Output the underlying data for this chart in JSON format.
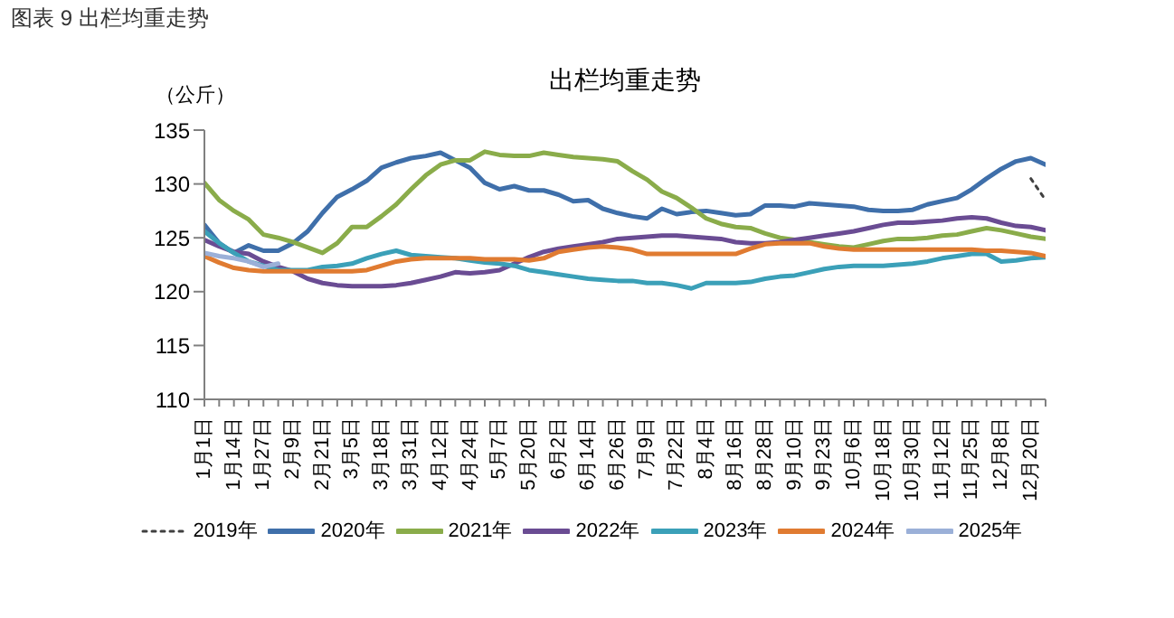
{
  "chart_data": {
    "type": "line",
    "title": "出栏均重走势",
    "ylabel": "（公斤）",
    "annotations": [
      "图表 9 出栏均重走势"
    ],
    "categories": [
      "1月1日",
      null,
      "1月14日",
      null,
      "1月27日",
      null,
      "2月9日",
      null,
      "2月21日",
      null,
      "3月5日",
      null,
      "3月18日",
      null,
      "3月31日",
      null,
      "4月12日",
      null,
      "4月24日",
      null,
      "5月7日",
      null,
      "5月20日",
      null,
      "6月2日",
      null,
      "6月14日",
      null,
      "6月26日",
      null,
      "7月9日",
      null,
      "7月22日",
      null,
      "8月4日",
      null,
      "8月16日",
      null,
      "8月28日",
      null,
      "9月10日",
      null,
      "9月23日",
      null,
      "10月6日",
      null,
      "10月18日",
      null,
      "10月30日",
      null,
      "11月12日",
      null,
      "11月25日",
      null,
      "12月8日",
      null,
      "12月20日",
      null
    ],
    "series": [
      {
        "name": "2019年",
        "color": "#404040",
        "line_style": "dotted",
        "values": [
          null,
          null,
          null,
          null,
          null,
          null,
          null,
          null,
          null,
          null,
          null,
          null,
          null,
          null,
          null,
          null,
          null,
          null,
          null,
          null,
          null,
          null,
          null,
          null,
          null,
          null,
          null,
          null,
          null,
          null,
          null,
          null,
          null,
          null,
          null,
          null,
          null,
          null,
          null,
          null,
          null,
          null,
          null,
          null,
          null,
          null,
          null,
          null,
          null,
          null,
          null,
          null,
          null,
          null,
          null,
          null,
          130.5,
          128.5
        ]
      },
      {
        "name": "2020年",
        "color": "#3f6faa",
        "values": [
          126.2,
          124.5,
          123.6,
          124.3,
          123.8,
          123.8,
          124.5,
          125.6,
          127.3,
          128.8,
          129.5,
          130.3,
          131.5,
          132,
          132.4,
          132.6,
          132.9,
          132.2,
          131.5,
          130.1,
          129.5,
          129.8,
          129.4,
          129.4,
          129,
          128.4,
          128.5,
          127.7,
          127.3,
          127,
          126.8,
          127.7,
          127.2,
          127.4,
          127.5,
          127.3,
          127.1,
          127.2,
          128,
          128,
          127.9,
          128.2,
          128.1,
          128,
          127.9,
          127.6,
          127.5,
          127.5,
          127.6,
          128.1,
          128.4,
          128.7,
          129.5,
          130.5,
          131.4,
          132.1,
          132.4,
          131.8
        ]
      },
      {
        "name": "2021年",
        "color": "#8aac4a",
        "values": [
          130.1,
          128.5,
          127.5,
          126.7,
          125.3,
          125,
          124.6,
          124.1,
          123.6,
          124.5,
          126,
          126,
          127,
          128.1,
          129.5,
          130.8,
          131.8,
          132.2,
          132.2,
          133,
          132.7,
          132.6,
          132.6,
          132.9,
          132.7,
          132.5,
          132.4,
          132.3,
          132.1,
          131.2,
          130.4,
          129.3,
          128.7,
          127.8,
          126.8,
          126.3,
          126,
          125.9,
          125.4,
          125,
          124.8,
          124.6,
          124.4,
          124.2,
          124.1,
          124.4,
          124.7,
          124.9,
          124.9,
          125,
          125.2,
          125.3,
          125.6,
          125.9,
          125.7,
          125.4,
          125.1,
          124.9
        ]
      },
      {
        "name": "2022年",
        "color": "#6a4c93",
        "values": [
          124.8,
          124.2,
          123.7,
          123.5,
          122.8,
          122.3,
          121.9,
          121.2,
          120.8,
          120.6,
          120.5,
          120.5,
          120.5,
          120.6,
          120.8,
          121.1,
          121.4,
          121.8,
          121.7,
          121.8,
          122,
          122.6,
          123.2,
          123.7,
          124,
          124.2,
          124.4,
          124.6,
          124.9,
          125,
          125.1,
          125.2,
          125.2,
          125.1,
          125,
          124.9,
          124.6,
          124.5,
          124.5,
          124.6,
          124.8,
          125,
          125.2,
          125.4,
          125.6,
          125.9,
          126.2,
          126.4,
          126.4,
          126.5,
          126.6,
          126.8,
          126.9,
          126.8,
          126.4,
          126.1,
          126,
          125.7
        ]
      },
      {
        "name": "2023年",
        "color": "#3ba0b8",
        "values": [
          125.6,
          124.5,
          123.6,
          122.8,
          122.4,
          122,
          122,
          122,
          122.3,
          122.4,
          122.6,
          123.1,
          123.5,
          123.8,
          123.4,
          123.3,
          123.2,
          123.1,
          122.9,
          122.7,
          122.6,
          122.4,
          122,
          121.8,
          121.6,
          121.4,
          121.2,
          121.1,
          121,
          121,
          120.8,
          120.8,
          120.6,
          120.3,
          120.8,
          120.8,
          120.8,
          120.9,
          121.2,
          121.4,
          121.5,
          121.8,
          122.1,
          122.3,
          122.4,
          122.4,
          122.4,
          122.5,
          122.6,
          122.8,
          123.1,
          123.3,
          123.5,
          123.5,
          122.8,
          122.9,
          123.1,
          123.2
        ]
      },
      {
        "name": "2024年",
        "color": "#e07b31",
        "values": [
          123.3,
          122.7,
          122.2,
          122,
          121.9,
          121.9,
          121.9,
          121.9,
          121.9,
          121.9,
          121.9,
          122,
          122.4,
          122.8,
          123,
          123.1,
          123.1,
          123.1,
          123.1,
          123,
          123,
          123,
          122.9,
          123.1,
          123.7,
          123.9,
          124.1,
          124.2,
          124.1,
          123.9,
          123.5,
          123.5,
          123.5,
          123.5,
          123.5,
          123.5,
          123.5,
          124,
          124.4,
          124.5,
          124.5,
          124.5,
          124.2,
          124,
          123.9,
          123.9,
          123.9,
          123.9,
          123.9,
          123.9,
          123.9,
          123.9,
          123.9,
          123.8,
          123.8,
          123.7,
          123.6,
          123.3
        ]
      },
      {
        "name": "2025年",
        "color": "#9bb0d8",
        "values": [
          123.6,
          123.3,
          123.1,
          122.8,
          122.3,
          122.6,
          null,
          null,
          null,
          null,
          null,
          null,
          null,
          null,
          null,
          null,
          null,
          null,
          null,
          null,
          null,
          null,
          null,
          null,
          null,
          null,
          null,
          null,
          null,
          null,
          null,
          null,
          null,
          null,
          null,
          null,
          null,
          null,
          null,
          null,
          null,
          null,
          null,
          null,
          null,
          null,
          null,
          null,
          null,
          null,
          null,
          null,
          null,
          null,
          null,
          null,
          null,
          null
        ]
      }
    ],
    "ylim": [
      110,
      135
    ],
    "yticks": [
      110,
      115,
      120,
      125,
      130,
      135
    ],
    "grid": false,
    "legend": "bottom",
    "marker": "none",
    "line_style": "solid"
  }
}
